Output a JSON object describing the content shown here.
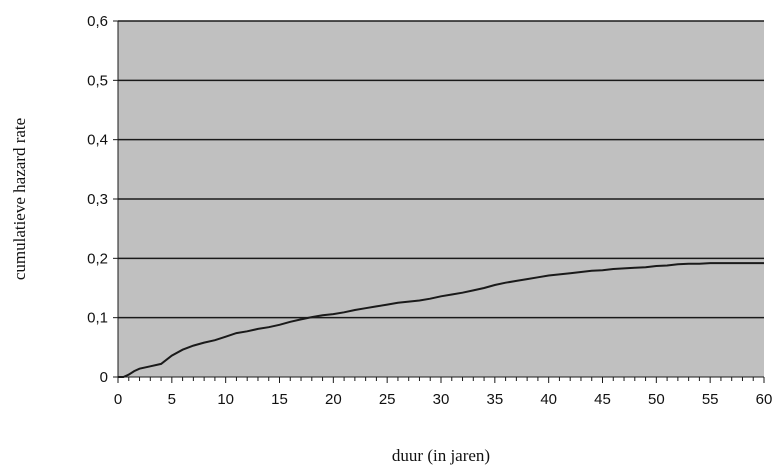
{
  "chart_data": {
    "type": "line",
    "title": "",
    "xlabel": "duur (in jaren)",
    "ylabel": "cumulatieve hazard rate",
    "xlim": [
      0,
      60
    ],
    "ylim": [
      0,
      0.6
    ],
    "x_ticks": [
      0,
      5,
      10,
      15,
      20,
      25,
      30,
      35,
      40,
      45,
      50,
      55,
      60
    ],
    "x_tick_labels": [
      "0",
      "5",
      "10",
      "15",
      "20",
      "25",
      "30",
      "35",
      "40",
      "45",
      "50",
      "55",
      "60"
    ],
    "y_ticks": [
      0,
      0.1,
      0.2,
      0.3,
      0.4,
      0.5,
      0.6
    ],
    "y_tick_labels": [
      "0",
      "0,1",
      "0,2",
      "0,3",
      "0,4",
      "0,5",
      "0,6"
    ],
    "grid": "horizontal",
    "legend": "none",
    "colors": {
      "plot_background": "#c0c0c0",
      "line": "#1a1a1a",
      "gridline": "#1a1a1a"
    },
    "series": [
      {
        "x": [
          0,
          0.5,
          1,
          1.5,
          2,
          3,
          4,
          5,
          6,
          7,
          8,
          9,
          10,
          11,
          12,
          13,
          14,
          15,
          16,
          17,
          18,
          19,
          20,
          21,
          22,
          23,
          24,
          25,
          26,
          27,
          28,
          29,
          30,
          31,
          32,
          33,
          34,
          35,
          36,
          37,
          38,
          39,
          40,
          41,
          42,
          43,
          44,
          45,
          46,
          47,
          48,
          49,
          50,
          51,
          52,
          53,
          54,
          55,
          56,
          57,
          58,
          59,
          60
        ],
        "values": [
          0,
          0,
          0.004,
          0.01,
          0.014,
          0.018,
          0.022,
          0.036,
          0.046,
          0.053,
          0.058,
          0.062,
          0.068,
          0.074,
          0.077,
          0.081,
          0.084,
          0.088,
          0.093,
          0.097,
          0.101,
          0.104,
          0.106,
          0.109,
          0.113,
          0.116,
          0.119,
          0.122,
          0.125,
          0.127,
          0.129,
          0.132,
          0.136,
          0.139,
          0.142,
          0.146,
          0.15,
          0.155,
          0.159,
          0.162,
          0.165,
          0.168,
          0.171,
          0.173,
          0.175,
          0.177,
          0.179,
          0.18,
          0.182,
          0.183,
          0.184,
          0.185,
          0.187,
          0.188,
          0.19,
          0.191,
          0.191,
          0.192,
          0.192,
          0.192,
          0.192,
          0.192,
          0.192
        ]
      }
    ]
  }
}
